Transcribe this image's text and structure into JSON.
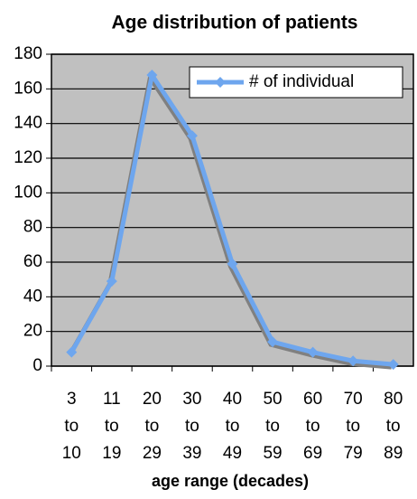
{
  "chart_data": {
    "type": "line",
    "title": "Age distribution of patients",
    "x_label": "age range (decades)",
    "categories": [
      "3 to 10",
      "11 to 19",
      "20 to 29",
      "30 to 39",
      "40 to 49",
      "50 to 59",
      "60 to 69",
      "70 to 79",
      "80 to 89"
    ],
    "series": [
      {
        "name": "# of individual",
        "color": "#6ea6ee",
        "values": [
          8,
          49,
          168,
          133,
          59,
          14,
          8,
          3,
          1
        ]
      }
    ],
    "ylim": [
      0,
      180
    ],
    "yticks": [
      0,
      20,
      40,
      60,
      80,
      100,
      120,
      140,
      160,
      180
    ],
    "grid": true,
    "legend": "top-right"
  }
}
